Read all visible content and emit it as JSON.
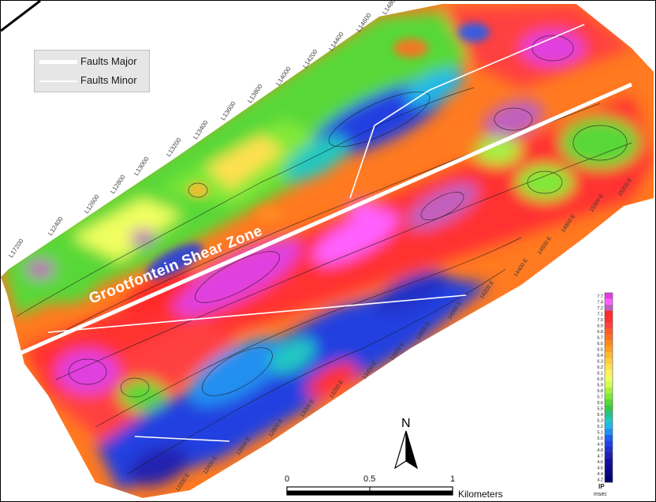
{
  "legend": {
    "items": [
      {
        "label": "Faults Major",
        "kind": "major"
      },
      {
        "label": "Faults Minor",
        "kind": "minor"
      }
    ]
  },
  "annotation": {
    "shear_zone_label": "Grootfontein  Shear  Zone"
  },
  "north_arrow": {
    "label": "N"
  },
  "scale_bar": {
    "ticks": [
      "0",
      "0.5",
      "1"
    ],
    "unit": "Kilometers"
  },
  "colorbar": {
    "title": "IP",
    "unit": "msec",
    "values": [
      "7.7",
      "7.4",
      "7.2",
      "7.1",
      "7.0",
      "6.9",
      "6.8",
      "6.7",
      "6.6",
      "6.5",
      "6.4",
      "6.3",
      "6.2",
      "6.1",
      "6.0",
      "5.9",
      "5.8",
      "5.7",
      "5.6",
      "5.5",
      "5.4",
      "5.3",
      "5.2",
      "5.1",
      "5.0",
      "4.9",
      "4.8",
      "4.7",
      "4.6",
      "4.5",
      "4.4",
      "4.2"
    ],
    "colors": [
      "#e040e0",
      "#ff60ff",
      "#c060c0",
      "#ff2a2a",
      "#ff3030",
      "#ff4040",
      "#ff5a2a",
      "#ff7020",
      "#ff8a20",
      "#ffa020",
      "#ffb830",
      "#ffcc40",
      "#ffe050",
      "#fff060",
      "#f0ff60",
      "#d0ff50",
      "#a8f040",
      "#80e838",
      "#58d838",
      "#38c848",
      "#28c088",
      "#20c8c0",
      "#20b8e8",
      "#2090f0",
      "#2060f0",
      "#2040e0",
      "#2030c8",
      "#2020b0",
      "#1010a0",
      "#100890",
      "#080880",
      "#000070"
    ]
  },
  "lines": [
    {
      "label": "L17200",
      "anchor": [
        14,
        326
      ]
    },
    {
      "label": "L12400",
      "anchor": [
        64,
        298
      ]
    },
    {
      "label": "L12600",
      "anchor": [
        110,
        270
      ]
    },
    {
      "label": "L12800",
      "anchor": [
        143,
        245
      ]
    },
    {
      "label": "L13000",
      "anchor": [
        173,
        222
      ]
    },
    {
      "label": "L13200",
      "anchor": [
        214,
        198
      ]
    },
    {
      "label": "L13400",
      "anchor": [
        248,
        176
      ]
    },
    {
      "label": "L13600",
      "anchor": [
        283,
        152
      ]
    },
    {
      "label": "L13800",
      "anchor": [
        317,
        130
      ]
    },
    {
      "label": "L14000",
      "anchor": [
        353,
        108
      ]
    },
    {
      "label": "L14200",
      "anchor": [
        387,
        86
      ]
    },
    {
      "label": "L14400",
      "anchor": [
        420,
        64
      ]
    },
    {
      "label": "L14600",
      "anchor": [
        455,
        40
      ]
    },
    {
      "label": "L14800",
      "anchor": [
        488,
        18
      ]
    }
  ],
  "easting_labels": [
    {
      "label": "15000 E",
      "anchor": [
        750,
        268
      ]
    },
    {
      "label": "14800 E",
      "anchor": [
        714,
        294
      ]
    },
    {
      "label": "14600 E",
      "anchor": [
        684,
        322
      ]
    },
    {
      "label": "14400 E",
      "anchor": [
        654,
        350
      ]
    },
    {
      "label": "14200 E",
      "anchor": [
        611,
        378
      ]
    },
    {
      "label": "14000 E",
      "anchor": [
        570,
        404
      ]
    },
    {
      "label": "13800 E",
      "anchor": [
        530,
        430
      ]
    },
    {
      "label": "13600 E",
      "anchor": [
        497,
        456
      ]
    },
    {
      "label": "13400 E",
      "anchor": [
        462,
        480
      ]
    },
    {
      "label": "13200 E",
      "anchor": [
        420,
        504
      ]
    },
    {
      "label": "13000 E",
      "anchor": [
        383,
        528
      ]
    },
    {
      "label": "12800 E",
      "anchor": [
        343,
        553
      ]
    },
    {
      "label": "12600 E",
      "anchor": [
        302,
        576
      ]
    },
    {
      "label": "12400 E",
      "anchor": [
        260,
        600
      ]
    },
    {
      "label": "12200 E",
      "anchor": [
        225,
        622
      ]
    },
    {
      "label": "15200 E",
      "anchor": [
        786,
        248
      ]
    }
  ]
}
